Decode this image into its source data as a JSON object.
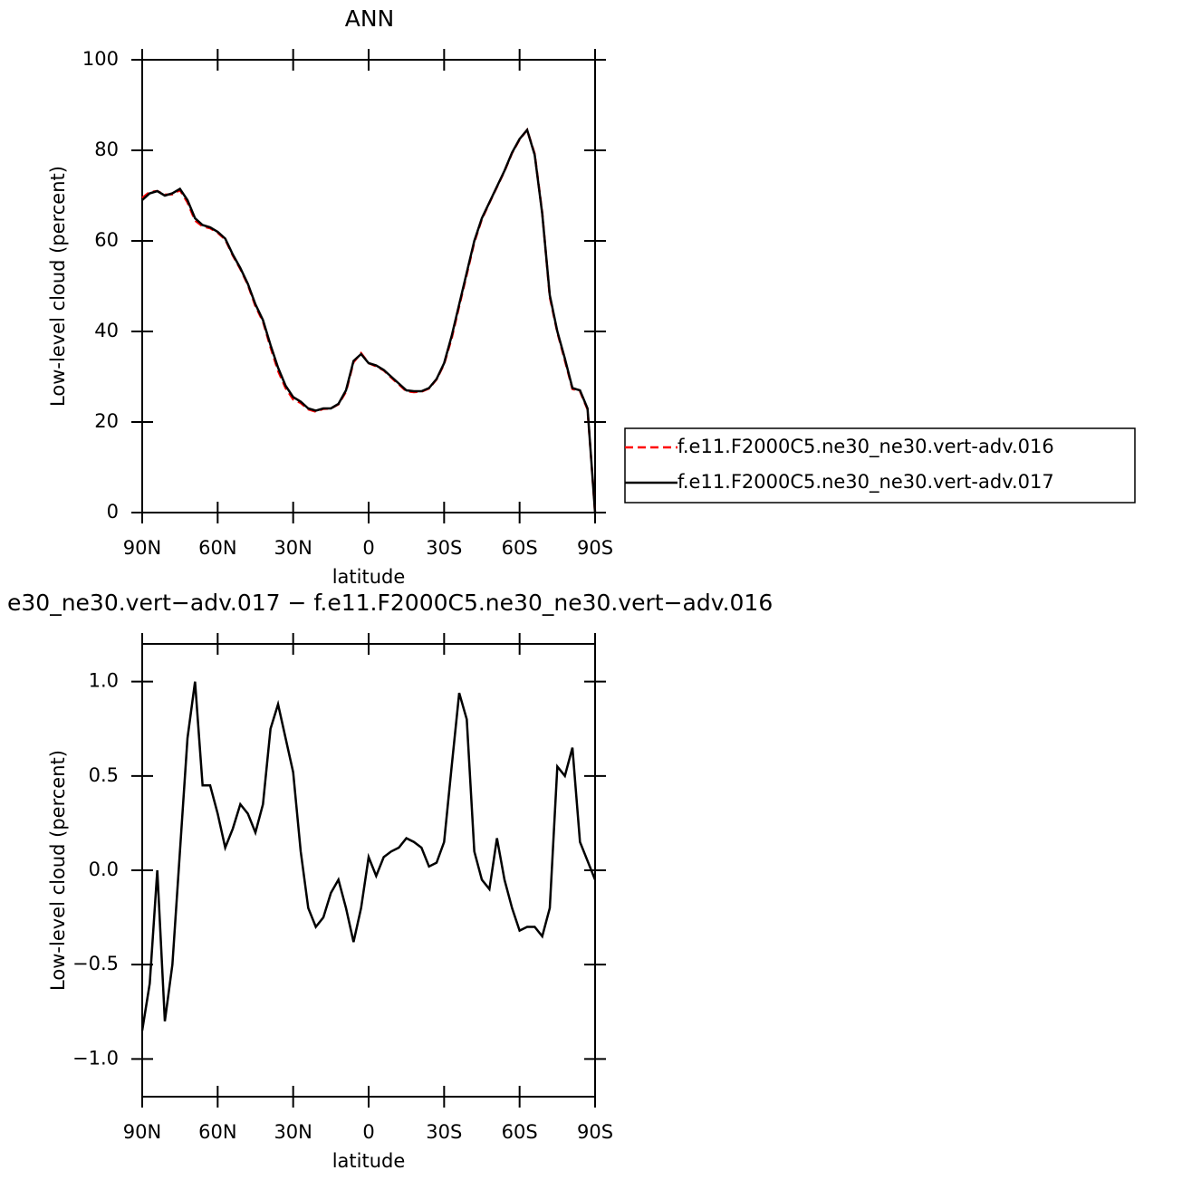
{
  "chart_data": [
    {
      "type": "line",
      "title": "ANN",
      "xlabel": "latitude",
      "ylabel": "Low-level cloud (percent)",
      "x": [
        90,
        87,
        84,
        81,
        78,
        75,
        72,
        69,
        66,
        63,
        60,
        57,
        54,
        51,
        48,
        45,
        42,
        39,
        36,
        33,
        30,
        27,
        24,
        21,
        18,
        15,
        12,
        9,
        6,
        3,
        0,
        -3,
        -6,
        -9,
        -12,
        -15,
        -18,
        -21,
        -24,
        -27,
        -30,
        -33,
        -36,
        -39,
        -42,
        -45,
        -48,
        -51,
        -54,
        -57,
        -60,
        -63,
        -66,
        -69,
        -72,
        -75,
        -78,
        -81,
        -84,
        -87,
        -90
      ],
      "series": [
        {
          "name": "f.e11.F2000C5.ne30_ne30.vert-adv.016",
          "color": "#ff0000",
          "linestyle": "dashed",
          "values": [
            69.5,
            70.8,
            71,
            70.2,
            70.3,
            71.2,
            68.5,
            64.5,
            63.2,
            62.8,
            61.8,
            60.3,
            56.8,
            53.8,
            50.3,
            45.6,
            42.2,
            36.5,
            31.3,
            27.5,
            25,
            24.2,
            22.8,
            22.3,
            22.9,
            23,
            23.9,
            26.7,
            33.2,
            35.2,
            33,
            32.3,
            31.4,
            29.8,
            28.3,
            26.8,
            26.6,
            26.7,
            27.4,
            29.4,
            32.8,
            38.5,
            45.6,
            52.6,
            59.7,
            64.8,
            68.4,
            71.9,
            75.4,
            79.4,
            82.4,
            84.5,
            79.2,
            66.2,
            47.6,
            39.8,
            33.6,
            27.3,
            26.8,
            22.8,
            0
          ]
        },
        {
          "name": "f.e11.F2000C5.ne30_ne30.vert-adv.017",
          "color": "#000000",
          "linestyle": "solid",
          "values": [
            69,
            70.5,
            71,
            70,
            70.5,
            71.5,
            69,
            65,
            63.5,
            63,
            62,
            60.5,
            57,
            54,
            50.5,
            46,
            42.5,
            37,
            32,
            28,
            25.5,
            24.5,
            23,
            22.5,
            23,
            23,
            24,
            27,
            33.5,
            35,
            33,
            32.5,
            31.5,
            30,
            28.5,
            27,
            26.8,
            26.8,
            27.5,
            29.5,
            33,
            39,
            46,
            53,
            60,
            65,
            68.5,
            72,
            75.5,
            79.5,
            82.5,
            84.5,
            79,
            66,
            48,
            40,
            34,
            27.5,
            27,
            23,
            0
          ]
        }
      ],
      "xlim": [
        90,
        -90
      ],
      "xticks": [
        {
          "value": 90,
          "label": "90N"
        },
        {
          "value": 60,
          "label": "60N"
        },
        {
          "value": 30,
          "label": "30N"
        },
        0,
        {
          "value": -30,
          "label": "30S"
        },
        {
          "value": -60,
          "label": "60S"
        },
        {
          "value": -90,
          "label": "90S"
        }
      ],
      "ylim": [
        0,
        100
      ],
      "yticks": [
        0,
        20,
        40,
        60,
        80,
        100
      ],
      "legend": "right"
    },
    {
      "type": "line",
      "title": "e30_ne30.vert−adv.017 − f.e11.F2000C5.ne30_ne30.vert−adv.016",
      "xlabel": "latitude",
      "ylabel": "Low-level cloud (percent)",
      "x": [
        90,
        87,
        84,
        81,
        78,
        75,
        72,
        69,
        66,
        63,
        60,
        57,
        54,
        51,
        48,
        45,
        42,
        39,
        36,
        33,
        30,
        27,
        24,
        21,
        18,
        15,
        12,
        9,
        6,
        3,
        0,
        -3,
        -6,
        -9,
        -12,
        -15,
        -18,
        -21,
        -24,
        -27,
        -30,
        -33,
        -36,
        -39,
        -42,
        -45,
        -48,
        -51,
        -54,
        -57,
        -60,
        -63,
        -66,
        -69,
        -72,
        -75,
        -78,
        -81,
        -84,
        -87,
        -90
      ],
      "values": [
        -0.85,
        -0.6,
        0,
        -0.8,
        -0.5,
        0.1,
        0.7,
        1,
        0.45,
        0.45,
        0.3,
        0.12,
        0.22,
        0.35,
        0.3,
        0.2,
        0.35,
        0.75,
        0.88,
        0.7,
        0.52,
        0.1,
        -0.2,
        -0.3,
        -0.25,
        -0.12,
        -0.05,
        -0.2,
        -0.38,
        -0.2,
        0.07,
        -0.03,
        0.07,
        0.1,
        0.12,
        0.17,
        0.15,
        0.12,
        0.02,
        0.04,
        0.15,
        0.55,
        0.94,
        0.8,
        0.1,
        -0.05,
        -0.1,
        0.17,
        -0.05,
        -0.2,
        -0.32,
        -0.3,
        -0.3,
        -0.35,
        -0.2,
        0.55,
        0.5,
        0.65,
        0.15,
        0.05,
        -0.05
      ],
      "color": "#000000",
      "xlim": [
        90,
        -90
      ],
      "xticks": [
        {
          "value": 90,
          "label": "90N"
        },
        {
          "value": 60,
          "label": "60N"
        },
        {
          "value": 30,
          "label": "30N"
        },
        0,
        {
          "value": -30,
          "label": "30S"
        },
        {
          "value": -60,
          "label": "60S"
        },
        {
          "value": -90,
          "label": "90S"
        }
      ],
      "ylim": [
        -1.2,
        1.2
      ],
      "yticks": [
        {
          "value": -1,
          "label": "−1.0"
        },
        {
          "value": -0.5,
          "label": "−0.5"
        },
        {
          "value": 0,
          "label": "0.0"
        },
        0.5,
        {
          "value": 1,
          "label": "1.0"
        }
      ]
    }
  ]
}
